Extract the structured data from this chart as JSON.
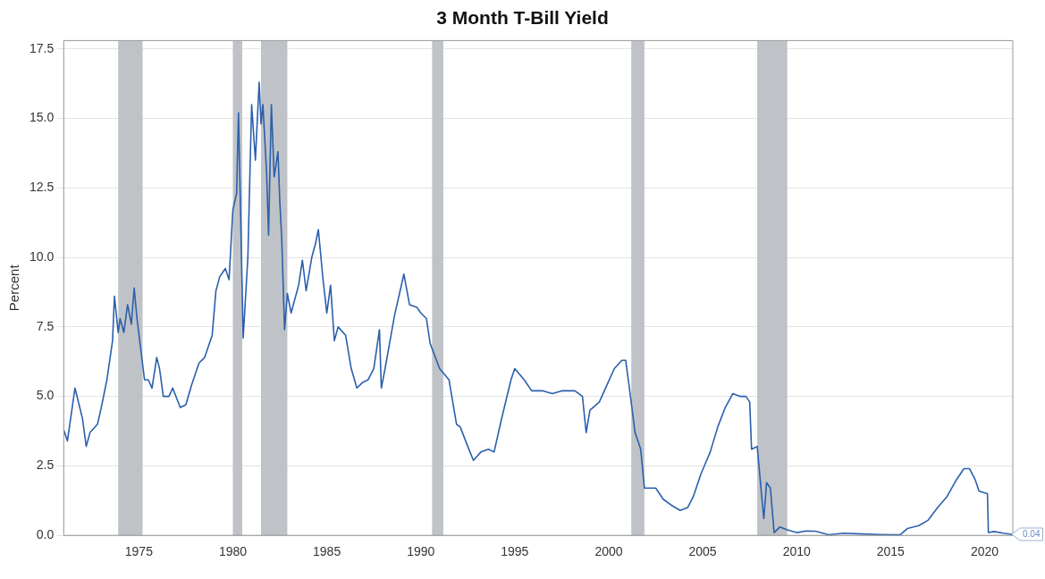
{
  "chart_data": {
    "type": "line",
    "title": "3 Month T-Bill Yield",
    "ylabel": "Percent",
    "xlim": [
      1971.0,
      2021.5
    ],
    "xticks": [
      1975,
      1980,
      1985,
      1990,
      1995,
      2000,
      2005,
      2010,
      2015,
      2020
    ],
    "ylim": [
      0,
      17.8
    ],
    "yticks": [
      {
        "value": 0,
        "label": "0.0"
      },
      {
        "value": 2.5,
        "label": "2.5"
      },
      {
        "value": 5,
        "label": "5.0"
      },
      {
        "value": 7.5,
        "label": "7.5"
      },
      {
        "value": 10,
        "label": "10.0"
      },
      {
        "value": 12.5,
        "label": "12.5"
      },
      {
        "value": 15,
        "label": "15.0"
      },
      {
        "value": 17.5,
        "label": "17.5"
      }
    ],
    "grid": "y",
    "legend": false,
    "marker": "none",
    "line_style": "solid",
    "bands": [
      {
        "axis": "x",
        "from": 1973.9,
        "to": 1975.2,
        "color": "#bfc3c7"
      },
      {
        "axis": "x",
        "from": 1980.0,
        "to": 1980.5,
        "color": "#bfc3c7"
      },
      {
        "axis": "x",
        "from": 1981.5,
        "to": 1982.9,
        "color": "#bfc3c7"
      },
      {
        "axis": "x",
        "from": 1990.6,
        "to": 1991.2,
        "color": "#bfc3c7"
      },
      {
        "axis": "x",
        "from": 2001.2,
        "to": 2001.9,
        "color": "#bfc3c7"
      },
      {
        "axis": "x",
        "from": 2007.9,
        "to": 2009.5,
        "color": "#bfc3c7"
      }
    ],
    "annotations": [
      {
        "text": "0.04",
        "x": 2021.45,
        "y": 0.04
      }
    ],
    "series": [
      {
        "color": "#2b5fad",
        "x": [
          1971.0,
          1971.2,
          1971.6,
          1972.0,
          1972.2,
          1972.4,
          1972.8,
          1973.0,
          1973.3,
          1973.6,
          1973.7,
          1973.9,
          1974.0,
          1974.2,
          1974.4,
          1974.6,
          1974.75,
          1974.9,
          1975.1,
          1975.3,
          1975.5,
          1975.7,
          1975.95,
          1976.1,
          1976.3,
          1976.6,
          1976.8,
          1977.2,
          1977.5,
          1977.8,
          1978.2,
          1978.5,
          1978.9,
          1979.1,
          1979.3,
          1979.6,
          1979.8,
          1980.0,
          1980.2,
          1980.3,
          1980.4,
          1980.55,
          1980.8,
          1981.0,
          1981.2,
          1981.4,
          1981.5,
          1981.6,
          1981.8,
          1981.9,
          1982.05,
          1982.2,
          1982.4,
          1982.5,
          1982.6,
          1982.75,
          1982.9,
          1983.1,
          1983.5,
          1983.7,
          1983.9,
          1984.2,
          1984.4,
          1984.55,
          1984.8,
          1985.0,
          1985.2,
          1985.4,
          1985.6,
          1986.0,
          1986.3,
          1986.6,
          1986.9,
          1987.2,
          1987.5,
          1987.8,
          1987.9,
          1988.1,
          1988.6,
          1989.1,
          1989.4,
          1989.8,
          1990.0,
          1990.3,
          1990.5,
          1991.0,
          1991.5,
          1991.9,
          1992.1,
          1992.5,
          1992.8,
          1993.2,
          1993.6,
          1993.9,
          1994.3,
          1994.8,
          1995.0,
          1995.5,
          1995.9,
          1996.5,
          1997.0,
          1997.5,
          1998.2,
          1998.6,
          1998.8,
          1999.0,
          1999.5,
          1999.9,
          2000.3,
          2000.7,
          2000.9,
          2001.1,
          2001.4,
          2001.7,
          2001.9,
          2002.5,
          2002.9,
          2003.3,
          2003.8,
          2004.2,
          2004.5,
          2004.9,
          2005.4,
          2005.8,
          2006.2,
          2006.6,
          2007.0,
          2007.3,
          2007.5,
          2007.6,
          2007.9,
          2008.1,
          2008.25,
          2008.4,
          2008.6,
          2008.8,
          2009.1,
          2009.5,
          2010.0,
          2010.5,
          2011.0,
          2011.7,
          2012.5,
          2013.5,
          2014.5,
          2015.5,
          2015.9,
          2016.5,
          2017.0,
          2017.5,
          2018.0,
          2018.5,
          2018.9,
          2019.2,
          2019.5,
          2019.7,
          2019.9,
          2020.15,
          2020.2,
          2020.5,
          2021.0,
          2021.45
        ],
        "values": [
          3.8,
          3.4,
          5.3,
          4.2,
          3.2,
          3.7,
          4.0,
          4.6,
          5.6,
          7.0,
          8.6,
          7.3,
          7.8,
          7.3,
          8.3,
          7.6,
          8.9,
          7.8,
          6.7,
          5.6,
          5.6,
          5.3,
          6.4,
          6.0,
          5.0,
          5.0,
          5.3,
          4.6,
          4.7,
          5.4,
          6.2,
          6.4,
          7.2,
          8.8,
          9.3,
          9.6,
          9.2,
          11.7,
          12.3,
          15.2,
          12.0,
          7.1,
          10.0,
          15.5,
          13.5,
          16.3,
          14.8,
          15.5,
          13.0,
          10.8,
          15.5,
          12.9,
          13.8,
          12.0,
          10.7,
          7.4,
          8.7,
          8.0,
          9.0,
          9.9,
          8.8,
          10.0,
          10.5,
          11.0,
          9.2,
          8.0,
          9.0,
          7.0,
          7.5,
          7.2,
          6.0,
          5.3,
          5.5,
          5.6,
          6.0,
          7.4,
          5.3,
          6.0,
          7.9,
          9.4,
          8.3,
          8.2,
          8.0,
          7.8,
          6.9,
          6.0,
          5.6,
          4.0,
          3.9,
          3.2,
          2.7,
          3.0,
          3.1,
          3.0,
          4.2,
          5.6,
          6.0,
          5.6,
          5.2,
          5.2,
          5.1,
          5.2,
          5.2,
          5.0,
          3.7,
          4.5,
          4.8,
          5.4,
          6.0,
          6.3,
          6.3,
          5.3,
          3.7,
          3.1,
          1.7,
          1.7,
          1.3,
          1.1,
          0.9,
          1.0,
          1.4,
          2.2,
          3.0,
          3.9,
          4.6,
          5.1,
          5.0,
          5.0,
          4.8,
          3.1,
          3.2,
          1.7,
          0.6,
          1.9,
          1.7,
          0.1,
          0.3,
          0.2,
          0.1,
          0.16,
          0.15,
          0.02,
          0.08,
          0.05,
          0.03,
          0.02,
          0.25,
          0.35,
          0.55,
          1.0,
          1.4,
          2.0,
          2.4,
          2.4,
          2.0,
          1.6,
          1.55,
          1.5,
          0.1,
          0.14,
          0.08,
          0.04
        ]
      }
    ]
  }
}
